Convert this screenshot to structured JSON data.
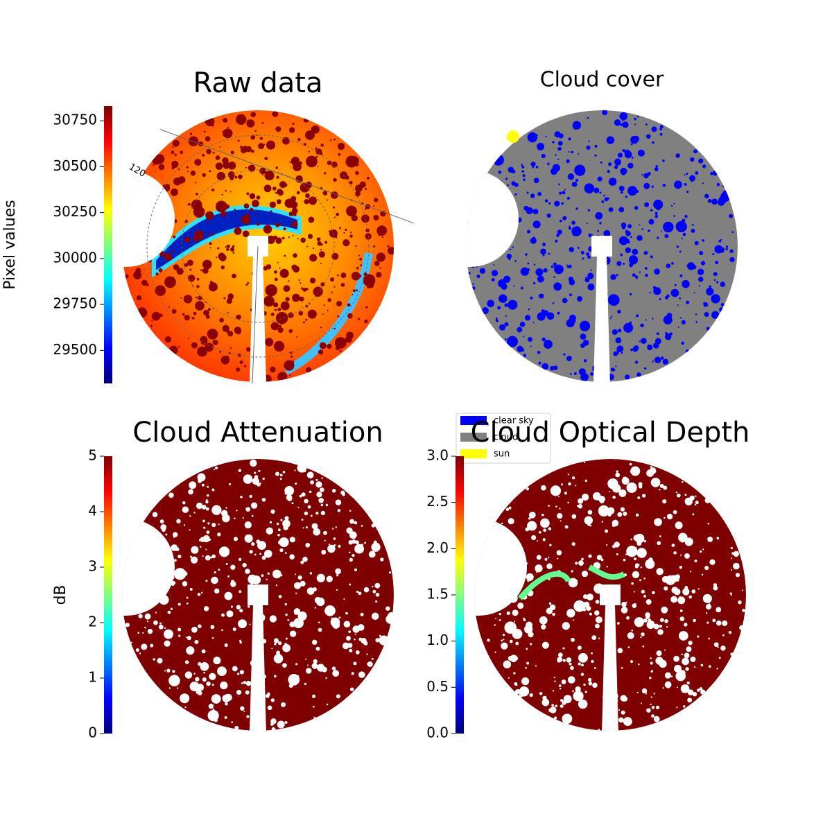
{
  "chart_data": [
    {
      "type": "image",
      "title": "Raw data",
      "colorbar_label": "Pixel values",
      "colormap": "jet",
      "ylim": [
        29320,
        30830
      ],
      "yticks": [
        29500,
        29750,
        30000,
        30250,
        30500,
        30750
      ],
      "polar_labels": [
        "120"
      ]
    },
    {
      "type": "image",
      "title": "Cloud cover",
      "legend": [
        {
          "name": "clear sky",
          "color": "#0000ff"
        },
        {
          "name": "cloud",
          "color": "#808080"
        },
        {
          "name": "sun",
          "color": "#ffff00"
        }
      ]
    },
    {
      "type": "image",
      "title": "Cloud Attenuation",
      "colorbar_label": "dB",
      "colormap": "jet",
      "ylim": [
        0,
        5
      ],
      "yticks": [
        0,
        1,
        2,
        3,
        4,
        5
      ]
    },
    {
      "type": "image",
      "title": "Cloud Optical Depth",
      "colormap": "jet",
      "ylim": [
        0,
        3
      ],
      "yticks": [
        {
          "value": 0,
          "label": "0.0"
        },
        0.5,
        {
          "value": 1,
          "label": "1.0"
        },
        1.5,
        {
          "value": 2,
          "label": "2.0"
        },
        2.5,
        {
          "value": 3,
          "label": "3.0"
        }
      ]
    }
  ]
}
